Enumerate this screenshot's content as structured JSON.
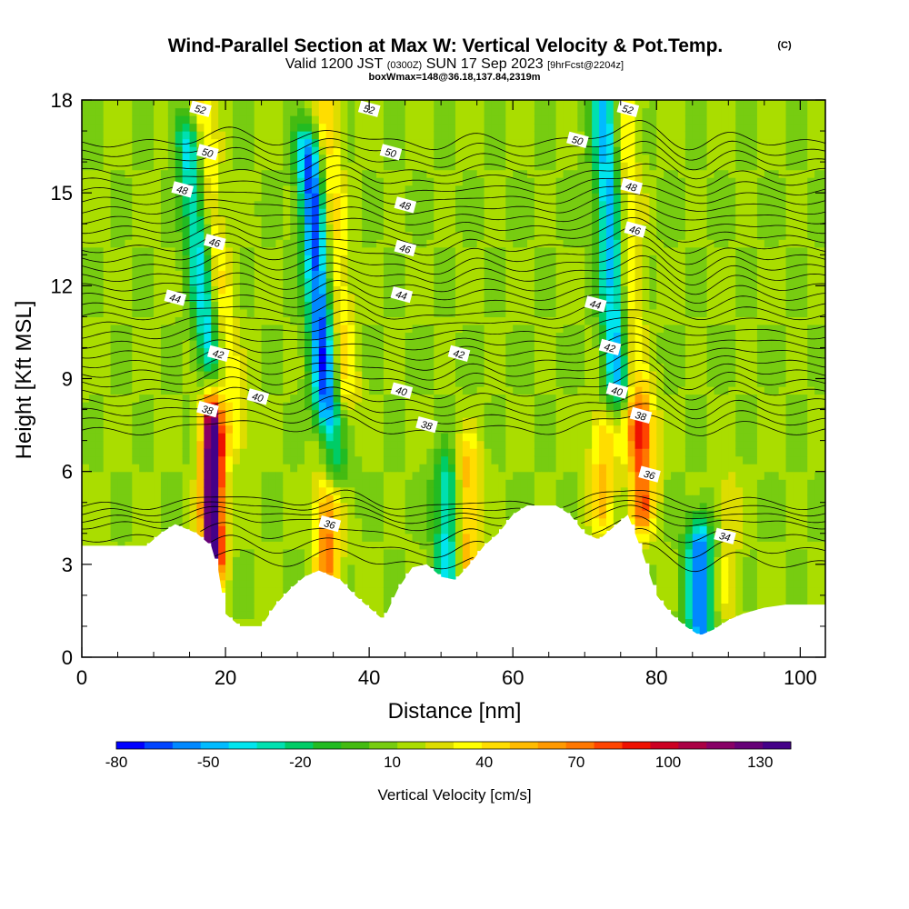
{
  "title": {
    "main": "Wind-Parallel Section at Max W: Vertical Velocity & Pot.Temp.",
    "mark": "(C)",
    "valid_prefix": "Valid 1200 JST",
    "valid_utc": "(0300Z)",
    "valid_date": "SUN 17 Sep 2023",
    "forecast": "[9hrFcst@2204z]",
    "boxline": "boxWmax=148@36.18,137.84,2319m"
  },
  "colorbar": {
    "title": "Vertical Velocity [cm/s]",
    "tick_labels": [
      "-80",
      "-50",
      "-20",
      "10",
      "40",
      "70",
      "100",
      "130"
    ],
    "tick_values": [
      -80,
      -50,
      -20,
      10,
      40,
      70,
      100,
      130
    ],
    "colors": [
      "#0000ff",
      "#0044ff",
      "#0088ff",
      "#00bbff",
      "#00e5ee",
      "#00e0b0",
      "#00cc66",
      "#22bb22",
      "#44bb11",
      "#77cc11",
      "#aadd00",
      "#dddd00",
      "#ffff00",
      "#ffdd00",
      "#ffbb00",
      "#ff9900",
      "#ff7700",
      "#ff4400",
      "#ee1100",
      "#cc0022",
      "#aa0044",
      "#880066",
      "#660077",
      "#440088"
    ],
    "min": -80,
    "max": 140
  },
  "chart_data": {
    "type": "heatmap",
    "title": "Wind-Parallel Section at Max W: Vertical Velocity & Pot.Temp.",
    "xlabel": "Distance [nm]",
    "ylabel": "Height [Kft MSL]",
    "xlim": [
      0,
      103.5
    ],
    "ylim": [
      0,
      18
    ],
    "x_ticks": [
      0,
      20,
      40,
      60,
      80,
      100
    ],
    "x_tick_labels": [
      "0",
      "20",
      "40",
      "60",
      "80",
      "100"
    ],
    "y_ticks": [
      0,
      3,
      6,
      9,
      12,
      15,
      18
    ],
    "y_tick_labels": [
      "0",
      "3",
      "6",
      "9",
      "12",
      "15",
      "18"
    ],
    "terrain_profile": {
      "x": [
        0,
        9,
        11,
        13,
        16,
        18,
        19,
        20,
        22,
        25,
        27,
        29,
        31,
        33,
        34,
        36,
        38,
        40,
        42,
        44,
        46,
        48,
        50,
        52,
        54,
        56,
        58,
        60,
        62,
        64,
        66,
        68,
        70,
        72,
        74,
        76,
        78,
        80,
        82,
        84,
        86,
        88,
        90,
        92,
        95,
        98,
        103.5
      ],
      "y": [
        3.6,
        3.6,
        4.0,
        4.3,
        4.0,
        3.6,
        2.8,
        1.4,
        1.0,
        1.0,
        1.7,
        2.2,
        2.6,
        2.8,
        2.7,
        2.5,
        2.0,
        1.6,
        1.2,
        2.2,
        2.9,
        3.0,
        2.6,
        2.5,
        3.0,
        3.6,
        4.0,
        4.6,
        4.9,
        4.9,
        4.9,
        4.6,
        4.0,
        3.8,
        4.2,
        4.6,
        3.4,
        2.0,
        1.4,
        1.0,
        0.7,
        0.9,
        1.2,
        1.4,
        1.6,
        1.7,
        1.7
      ]
    },
    "w_field_features": [
      {
        "name": "updraft",
        "x": 18.2,
        "y_bottom": 3.5,
        "y_top": 7.8,
        "lean": 0.0,
        "w_max": 148
      },
      {
        "name": "updraft",
        "x": 21,
        "y_bottom": 7.5,
        "y_top": 18,
        "lean": -0.45,
        "w_max": 45
      },
      {
        "name": "downdraft",
        "x": 18.5,
        "y_bottom": 8.5,
        "y_top": 16.5,
        "lean": -0.45,
        "w_max": -45
      },
      {
        "name": "updraft",
        "x": 34.2,
        "y_bottom": 3.0,
        "y_top": 6.5,
        "lean": 0.0,
        "w_max": 70
      },
      {
        "name": "downdraft",
        "x": 34.6,
        "y_bottom": 6.5,
        "y_top": 16.0,
        "lean": -0.3,
        "w_max": -70
      },
      {
        "name": "updraft",
        "x": 36.5,
        "y_bottom": 9.0,
        "y_top": 18,
        "lean": -0.3,
        "w_max": 45
      },
      {
        "name": "updraft",
        "x": 53.5,
        "y_bottom": 3.0,
        "y_top": 6.0,
        "lean": 0.0,
        "w_max": 60
      },
      {
        "name": "downdraft",
        "x": 51.0,
        "y_bottom": 3.0,
        "y_top": 5.5,
        "lean": 0.0,
        "w_max": -45
      },
      {
        "name": "updraft",
        "x": 72.5,
        "y_bottom": 5.0,
        "y_top": 7.0,
        "lean": 0.0,
        "w_max": 50
      },
      {
        "name": "downdraft",
        "x": 74.5,
        "y_bottom": 9.0,
        "y_top": 18,
        "lean": -0.2,
        "w_max": -50
      },
      {
        "name": "updraft",
        "x": 78.0,
        "y_bottom": 5.0,
        "y_top": 7.5,
        "lean": 0.0,
        "w_max": 75
      },
      {
        "name": "updraft",
        "x": 77.0,
        "y_bottom": 7.5,
        "y_top": 18,
        "lean": -0.15,
        "w_max": 40
      },
      {
        "name": "downdraft",
        "x": 86.0,
        "y_bottom": 0.8,
        "y_top": 3.5,
        "lean": 0.0,
        "w_max": -60
      },
      {
        "name": "updraft",
        "x": 90.0,
        "y_bottom": 2.0,
        "y_top": 5.0,
        "lean": 0.0,
        "w_max": 30
      }
    ],
    "theta_contours": [
      {
        "label": "34",
        "level": 34,
        "x": 89.5,
        "y": 3.9
      },
      {
        "label": "36",
        "level": 36,
        "x": 34.5,
        "y": 4.3
      },
      {
        "label": "36",
        "level": 36,
        "x": 79.0,
        "y": 5.9
      },
      {
        "label": "38",
        "level": 38,
        "x": 17.5,
        "y": 8.0
      },
      {
        "label": "38",
        "level": 38,
        "x": 48.0,
        "y": 7.5
      },
      {
        "label": "38",
        "level": 38,
        "x": 77.8,
        "y": 7.8
      },
      {
        "label": "40",
        "level": 40,
        "x": 24.5,
        "y": 8.4
      },
      {
        "label": "40",
        "level": 40,
        "x": 44.5,
        "y": 8.6
      },
      {
        "label": "40",
        "level": 40,
        "x": 74.5,
        "y": 8.6
      },
      {
        "label": "42",
        "level": 42,
        "x": 19.0,
        "y": 9.8
      },
      {
        "label": "42",
        "level": 42,
        "x": 52.5,
        "y": 9.8
      },
      {
        "label": "42",
        "level": 42,
        "x": 73.5,
        "y": 10.0
      },
      {
        "label": "44",
        "level": 44,
        "x": 13.0,
        "y": 11.6
      },
      {
        "label": "44",
        "level": 44,
        "x": 44.5,
        "y": 11.7
      },
      {
        "label": "44",
        "level": 44,
        "x": 71.5,
        "y": 11.4
      },
      {
        "label": "46",
        "level": 46,
        "x": 18.5,
        "y": 13.4
      },
      {
        "label": "46",
        "level": 46,
        "x": 45.0,
        "y": 13.2
      },
      {
        "label": "46",
        "level": 46,
        "x": 77.0,
        "y": 13.8
      },
      {
        "label": "48",
        "level": 48,
        "x": 14.0,
        "y": 15.1
      },
      {
        "label": "48",
        "level": 48,
        "x": 45.0,
        "y": 14.6
      },
      {
        "label": "48",
        "level": 48,
        "x": 76.5,
        "y": 15.2
      },
      {
        "label": "50",
        "level": 50,
        "x": 17.5,
        "y": 16.3
      },
      {
        "label": "50",
        "level": 50,
        "x": 43.0,
        "y": 16.3
      },
      {
        "label": "50",
        "level": 50,
        "x": 69.0,
        "y": 16.7
      },
      {
        "label": "52",
        "level": 52,
        "x": 16.5,
        "y": 17.7
      },
      {
        "label": "52",
        "level": 52,
        "x": 40.0,
        "y": 17.7
      },
      {
        "label": "52",
        "level": 52,
        "x": 76.0,
        "y": 17.7
      }
    ],
    "theta_levels": [
      33,
      34,
      35,
      36,
      36.5,
      37,
      37.5,
      38,
      38.5,
      39,
      39.5,
      40,
      40.5,
      41,
      41.5,
      42,
      42.5,
      43,
      43.5,
      44,
      44.5,
      45,
      45.5,
      46,
      46.5,
      47,
      47.5,
      48,
      48.5,
      49,
      49.5,
      50,
      50.5,
      51,
      51.5,
      52,
      52.5,
      53
    ]
  }
}
